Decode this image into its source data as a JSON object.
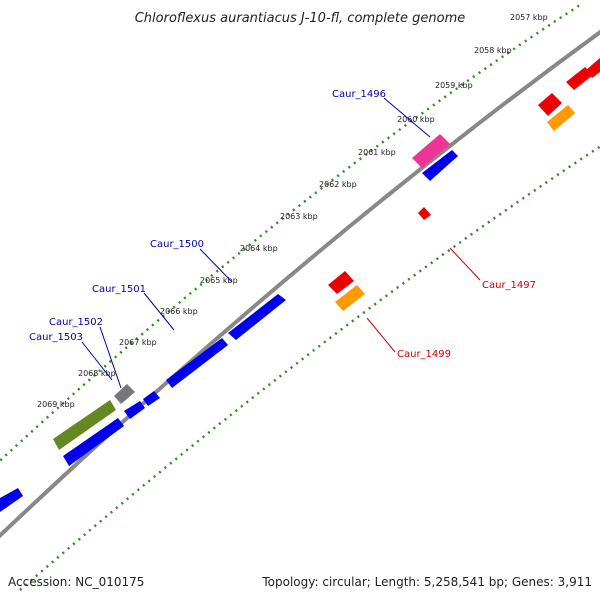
{
  "title": "Chloroflexus aurantiacus J-10-fl, complete genome",
  "footer": {
    "accession": "Accession: NC_010175",
    "summary": "Topology: circular; Length: 5,258,541 bp; Genes: 3,911"
  },
  "scale_labels": [
    "2057 kbp",
    "2058 kbp",
    "2059 kbp",
    "2060 kbp",
    "2061 kbp",
    "2062 kbp",
    "2063 kbp",
    "2064 kbp",
    "2065 kbp",
    "2066 kbp",
    "2067 kbp",
    "2068 kbp",
    "2069 kbp"
  ],
  "gene_labels_outer": [
    "Caur_1496",
    "Caur_1500",
    "Caur_1501",
    "Caur_1502",
    "Caur_1503"
  ],
  "gene_labels_inner": [
    "Caur_1497",
    "Caur_1499"
  ],
  "colors": {
    "backbone": "#888888",
    "dots": "#2e8b22",
    "cds_forward": "#0000ee",
    "cds_reverse": "#ee0000",
    "rna": "#ff9900",
    "pink": "#ee3399",
    "olive": "#668822",
    "gray": "#777777",
    "outer_label": "#0000aa",
    "inner_label": "#cc0000"
  }
}
